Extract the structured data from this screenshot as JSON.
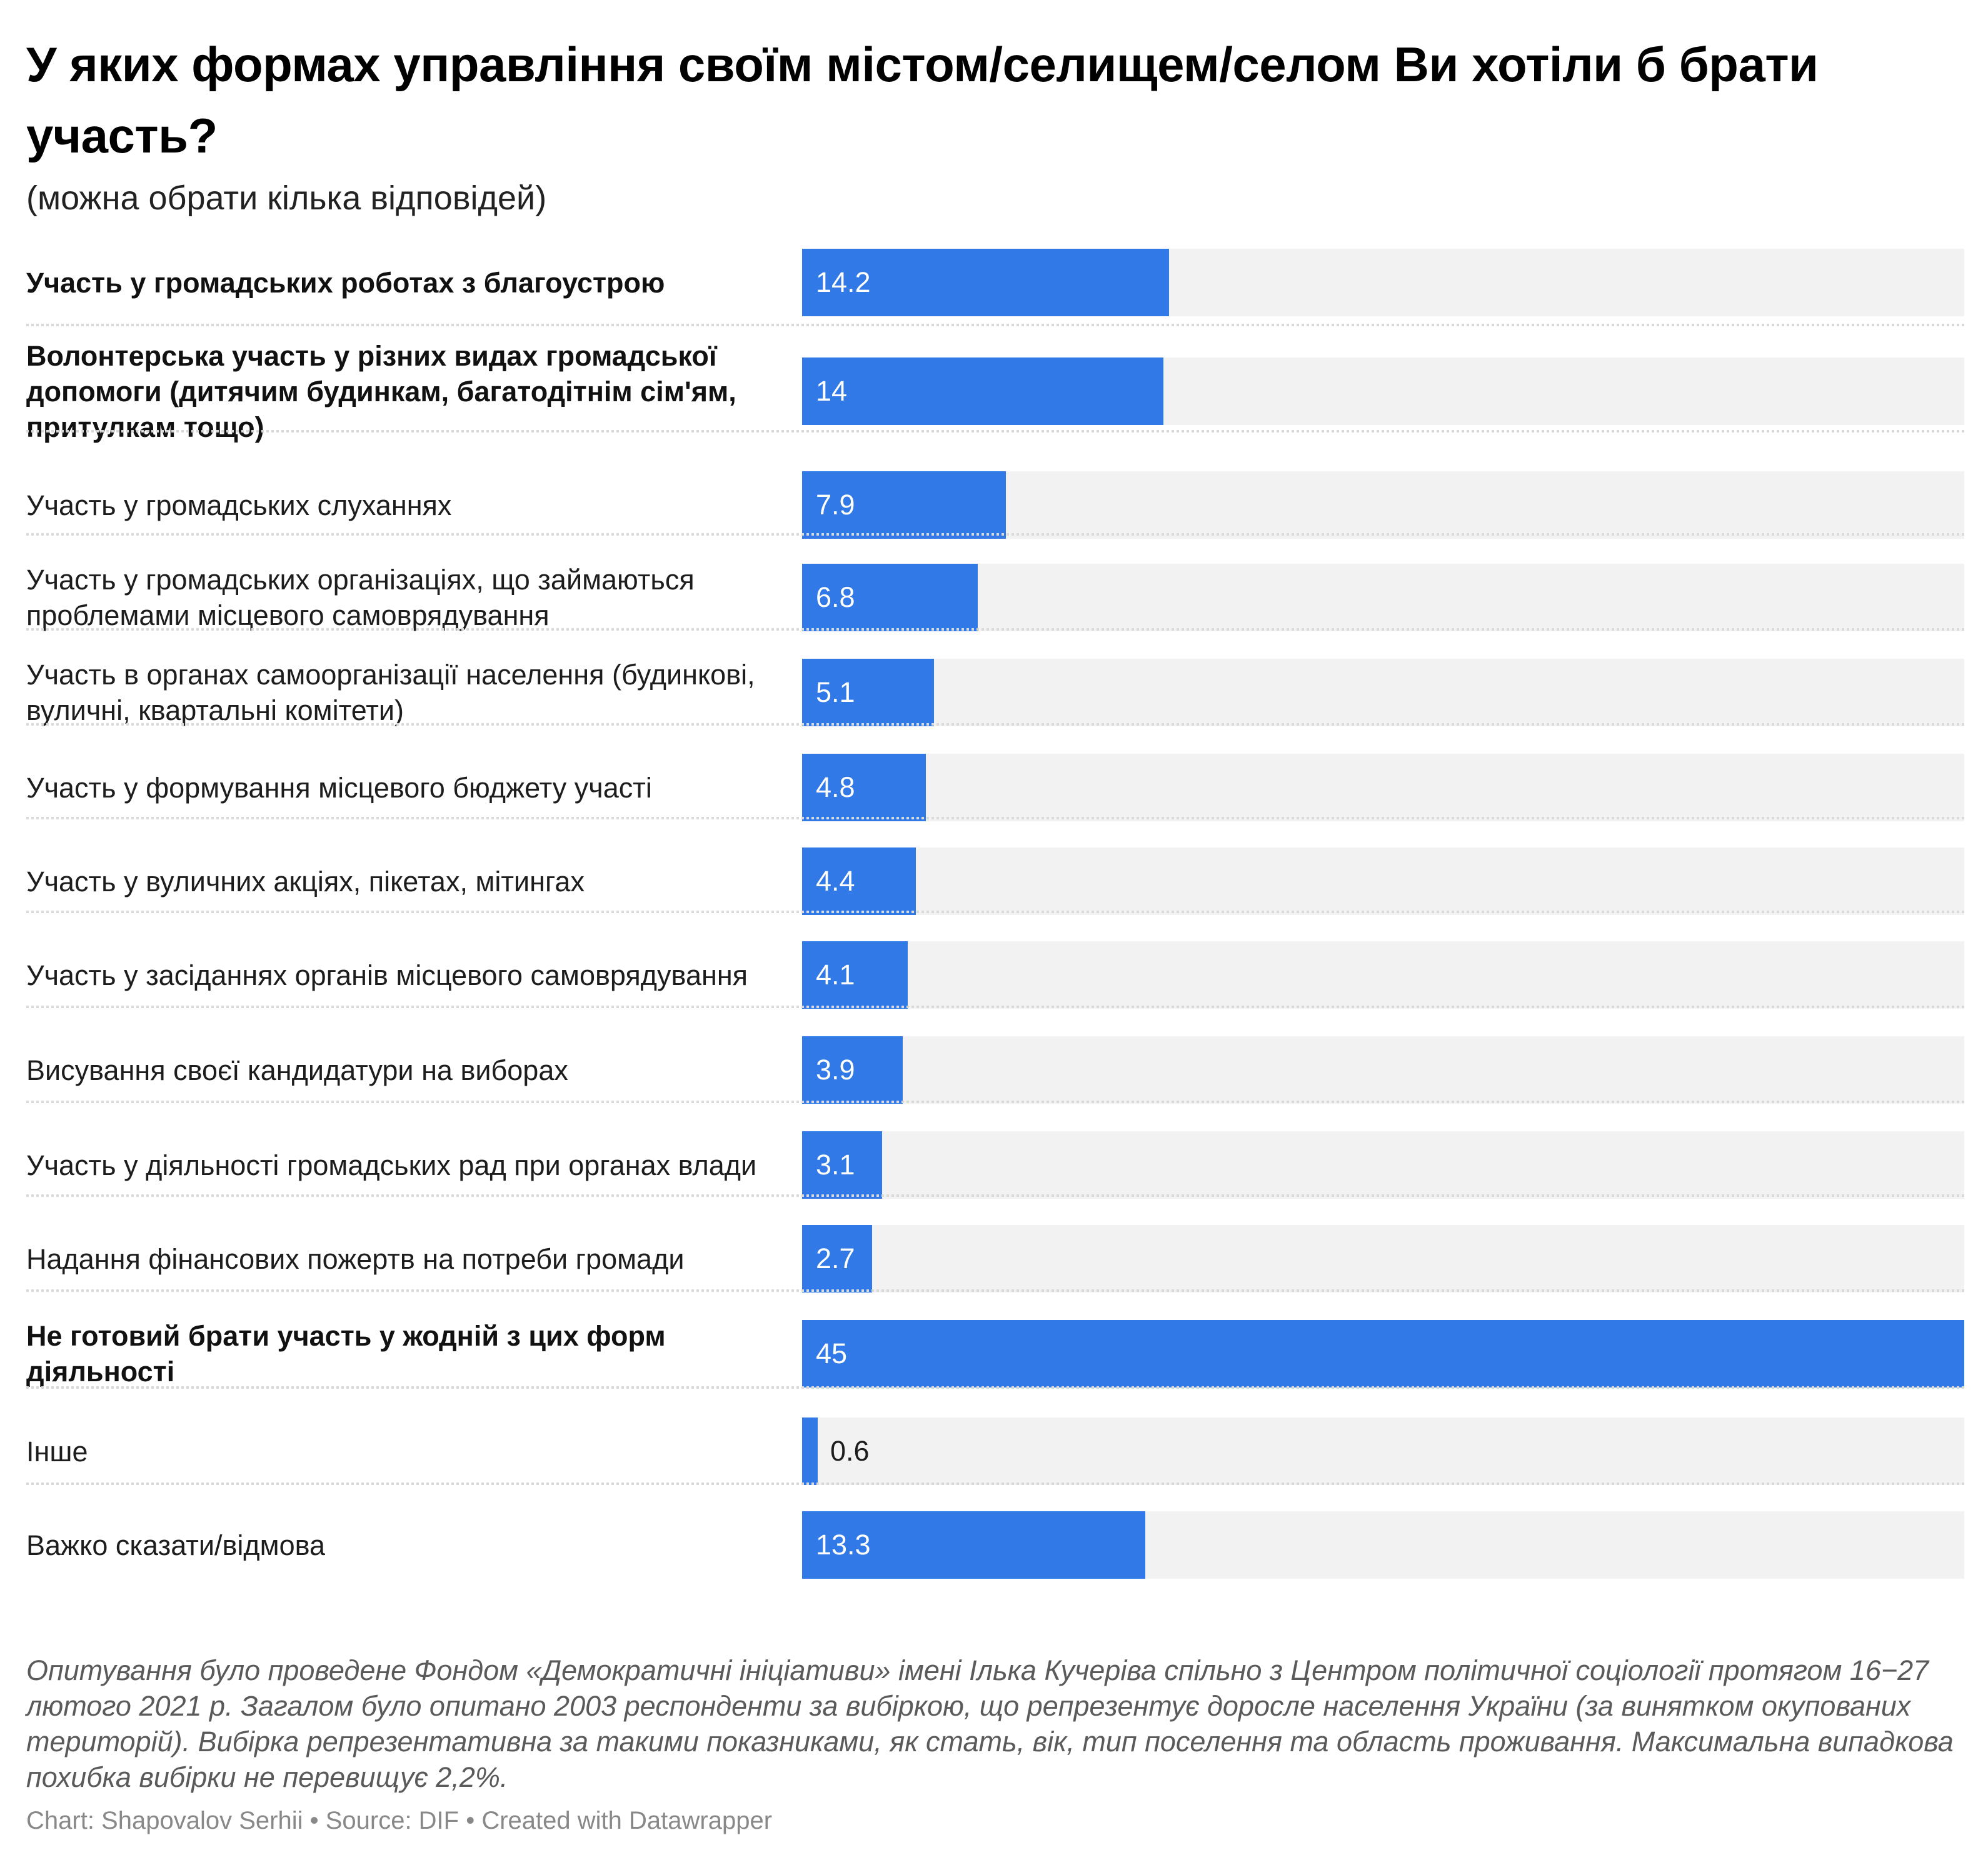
{
  "chart_data": {
    "type": "bar",
    "orientation": "horizontal",
    "title": "У яких формах управління своїм містом/селищем/селом Ви хотіли б брати участь?",
    "subtitle": "(можна обрати кілька відповідей)",
    "xlabel": "",
    "ylabel": "",
    "xlim": [
      0,
      45
    ],
    "grid": false,
    "legend": "none",
    "bar_color": "#3179e6",
    "track_color": "#f2f2f2",
    "categories": [
      "Участь у громадських роботах з благоустрою",
      "Волонтерська участь у різних видах громадської допомоги (дитячим будинкам, багатодітнім сім'ям, притулкам тощо)",
      "Участь у громадських слуханнях",
      "Участь у громадських організаціях, що займаються проблемами місцевого самоврядування",
      "Участь в органах самоорганізації населення (будинкові, вуличні, квартальні комітети)",
      "Участь у формування місцевого бюджету участі",
      "Участь у вуличних акціях, пікетах, мітингах",
      "Участь у засіданнях органів місцевого самоврядування",
      "Висування своєї кандидатури на виборах",
      "Участь у діяльності громадських рад при органах влади",
      "Надання фінансових пожертв на потреби громади",
      "Не готовий брати участь у жодній з цих форм діяльності",
      "Інше",
      "Важко сказати/відмова"
    ],
    "values": [
      14.2,
      14,
      7.9,
      6.8,
      5.1,
      4.8,
      4.4,
      4.1,
      3.9,
      3.1,
      2.7,
      45,
      0.6,
      13.3
    ],
    "value_labels": [
      "14.2",
      "14",
      "7.9",
      "6.8",
      "5.1",
      "4.8",
      "4.4",
      "4.1",
      "3.9",
      "3.1",
      "2.7",
      "45",
      "0.6",
      "13.3"
    ],
    "bold_rows": [
      0,
      1,
      11
    ],
    "label_outside_rows": [
      12
    ],
    "notes": "Опитування було проведене Фондом «Демократичні ініціативи» імені Ілька Кучеріва спільно з Центром політичної соціології протягом 16−27 лютого 2021 р. Загалом було опитано 2003 респонденти за вибіркою, що репрезентує доросле населення України (за винятком окупованих територій). Вибірка репрезентативна за такими показниками, як стать, вік, тип поселення та область проживання. Максимальна випадкова похибка вибірки не перевищує 2,2%.",
    "byline": {
      "chart_prefix": "Chart: ",
      "author": "Shapovalov Serhii",
      "sep1": " • ",
      "source_prefix": "Source: ",
      "source": "DIF",
      "sep2": " • ",
      "created_with": "Created with Datawrapper"
    }
  }
}
